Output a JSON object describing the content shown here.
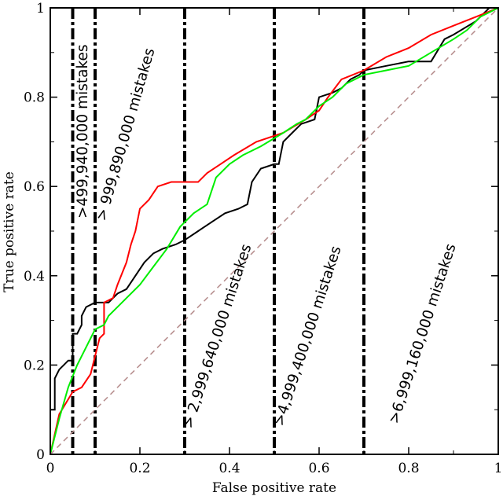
{
  "chart_data": {
    "type": "line",
    "title": "",
    "xlabel": "False positive rate",
    "ylabel": "True positive rate",
    "xlim": [
      0,
      1
    ],
    "ylim": [
      0,
      1
    ],
    "x_ticks": [
      0,
      0.2,
      0.4,
      0.6,
      0.8,
      1
    ],
    "x_tick_labels": [
      "0",
      "0.2",
      "0.4",
      "0.6",
      "0.8",
      "1"
    ],
    "y_ticks": [
      0,
      0.2,
      0.4,
      0.6,
      0.8,
      1
    ],
    "y_tick_labels": [
      "0",
      "0.2",
      "0.4",
      "0.6",
      "0.8",
      "1"
    ],
    "grid": false,
    "legend": "none",
    "series": [
      {
        "color": "#000000",
        "points": [
          [
            0,
            0
          ],
          [
            0,
            0.1
          ],
          [
            0.01,
            0.1
          ],
          [
            0.01,
            0.17
          ],
          [
            0.02,
            0.19
          ],
          [
            0.03,
            0.2
          ],
          [
            0.04,
            0.21
          ],
          [
            0.05,
            0.21
          ],
          [
            0.05,
            0.27
          ],
          [
            0.06,
            0.27
          ],
          [
            0.07,
            0.29
          ],
          [
            0.07,
            0.31
          ],
          [
            0.08,
            0.33
          ],
          [
            0.1,
            0.34
          ],
          [
            0.13,
            0.34
          ],
          [
            0.15,
            0.36
          ],
          [
            0.17,
            0.37
          ],
          [
            0.19,
            0.4
          ],
          [
            0.21,
            0.43
          ],
          [
            0.23,
            0.45
          ],
          [
            0.25,
            0.46
          ],
          [
            0.28,
            0.47
          ],
          [
            0.3,
            0.48
          ],
          [
            0.33,
            0.5
          ],
          [
            0.36,
            0.52
          ],
          [
            0.39,
            0.54
          ],
          [
            0.42,
            0.55
          ],
          [
            0.44,
            0.56
          ],
          [
            0.45,
            0.61
          ],
          [
            0.47,
            0.64
          ],
          [
            0.5,
            0.65
          ],
          [
            0.51,
            0.65
          ],
          [
            0.52,
            0.7
          ],
          [
            0.54,
            0.72
          ],
          [
            0.56,
            0.74
          ],
          [
            0.59,
            0.75
          ],
          [
            0.6,
            0.8
          ],
          [
            0.63,
            0.81
          ],
          [
            0.65,
            0.82
          ],
          [
            0.67,
            0.84
          ],
          [
            0.69,
            0.85
          ],
          [
            0.7,
            0.86
          ],
          [
            0.75,
            0.87
          ],
          [
            0.8,
            0.88
          ],
          [
            0.85,
            0.88
          ],
          [
            0.88,
            0.93
          ],
          [
            0.9,
            0.94
          ],
          [
            0.95,
            0.97
          ],
          [
            0.98,
            1
          ],
          [
            1,
            1
          ]
        ]
      },
      {
        "color": "#ff0000",
        "points": [
          [
            0,
            0
          ],
          [
            0.02,
            0.09
          ],
          [
            0.05,
            0.14
          ],
          [
            0.07,
            0.15
          ],
          [
            0.09,
            0.18
          ],
          [
            0.1,
            0.22
          ],
          [
            0.11,
            0.26
          ],
          [
            0.12,
            0.27
          ],
          [
            0.12,
            0.34
          ],
          [
            0.14,
            0.35
          ],
          [
            0.15,
            0.38
          ],
          [
            0.17,
            0.43
          ],
          [
            0.18,
            0.47
          ],
          [
            0.19,
            0.5
          ],
          [
            0.2,
            0.55
          ],
          [
            0.22,
            0.57
          ],
          [
            0.24,
            0.6
          ],
          [
            0.27,
            0.61
          ],
          [
            0.33,
            0.61
          ],
          [
            0.35,
            0.63
          ],
          [
            0.38,
            0.65
          ],
          [
            0.41,
            0.67
          ],
          [
            0.46,
            0.7
          ],
          [
            0.52,
            0.72
          ],
          [
            0.57,
            0.75
          ],
          [
            0.6,
            0.77
          ],
          [
            0.62,
            0.8
          ],
          [
            0.65,
            0.84
          ],
          [
            0.7,
            0.86
          ],
          [
            0.75,
            0.89
          ],
          [
            0.8,
            0.91
          ],
          [
            0.85,
            0.94
          ],
          [
            0.9,
            0.96
          ],
          [
            0.95,
            0.98
          ],
          [
            1,
            1
          ]
        ]
      },
      {
        "color": "#00ee00",
        "points": [
          [
            0,
            0
          ],
          [
            0.02,
            0.08
          ],
          [
            0.04,
            0.15
          ],
          [
            0.06,
            0.2
          ],
          [
            0.08,
            0.24
          ],
          [
            0.1,
            0.28
          ],
          [
            0.12,
            0.29
          ],
          [
            0.13,
            0.31
          ],
          [
            0.15,
            0.33
          ],
          [
            0.17,
            0.35
          ],
          [
            0.2,
            0.38
          ],
          [
            0.23,
            0.42
          ],
          [
            0.26,
            0.46
          ],
          [
            0.29,
            0.51
          ],
          [
            0.32,
            0.54
          ],
          [
            0.35,
            0.56
          ],
          [
            0.37,
            0.62
          ],
          [
            0.4,
            0.65
          ],
          [
            0.43,
            0.67
          ],
          [
            0.47,
            0.69
          ],
          [
            0.52,
            0.72
          ],
          [
            0.55,
            0.74
          ],
          [
            0.57,
            0.75
          ],
          [
            0.6,
            0.78
          ],
          [
            0.63,
            0.8
          ],
          [
            0.66,
            0.83
          ],
          [
            0.7,
            0.85
          ],
          [
            0.75,
            0.86
          ],
          [
            0.8,
            0.87
          ],
          [
            0.85,
            0.9
          ],
          [
            0.9,
            0.93
          ],
          [
            0.93,
            0.95
          ],
          [
            0.96,
            0.98
          ],
          [
            1,
            1
          ]
        ]
      },
      {
        "color": "#b89090",
        "dashed": true,
        "points": [
          [
            0,
            0
          ],
          [
            1,
            1
          ]
        ]
      }
    ],
    "thresholds": [
      {
        "x": 0.05,
        "label": ">499,940,000 mistakes"
      },
      {
        "x": 0.1,
        "label": "> 999,890,000 mistakes"
      },
      {
        "x": 0.3,
        "label": "> 2,999,640,000 mistakes"
      },
      {
        "x": 0.5,
        "label": ">4,999,400,000 mistakes"
      },
      {
        "x": 0.7,
        "label": ">6,999,160,000 mistakes"
      }
    ]
  }
}
